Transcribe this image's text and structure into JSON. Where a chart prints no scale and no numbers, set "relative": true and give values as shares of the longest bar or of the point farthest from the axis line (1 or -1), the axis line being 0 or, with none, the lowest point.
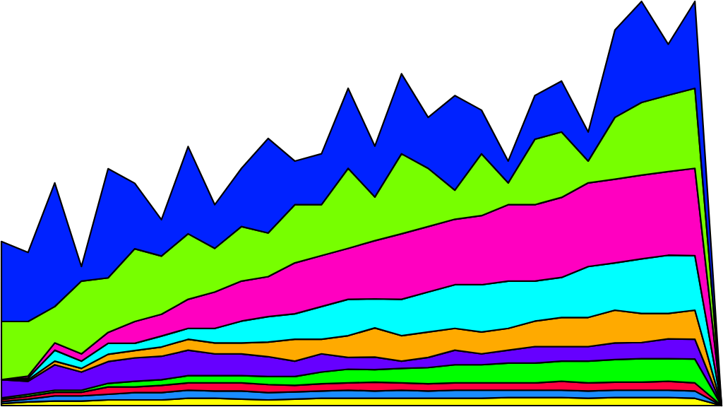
{
  "chart_data": {
    "type": "area",
    "stacked": true,
    "relative": true,
    "legend": false,
    "categories": [
      null,
      null,
      null,
      null,
      null,
      null,
      null,
      null,
      null,
      null,
      null,
      null,
      null,
      null,
      null,
      null,
      null,
      null,
      null,
      null,
      null,
      null,
      null,
      null,
      null,
      null,
      null,
      null
    ],
    "series": [
      {
        "color": "#ffff00",
        "values": [
          0.005,
          0.009,
          0.011,
          0.011,
          0.014,
          0.014,
          0.014,
          0.018,
          0.018,
          0.016,
          0.014,
          0.016,
          0.018,
          0.018,
          0.018,
          0.018,
          0.018,
          0.018,
          0.018,
          0.02,
          0.02,
          0.02,
          0.018,
          0.02,
          0.02,
          0.02,
          0.018,
          0
        ]
      },
      {
        "color": "#1a8cff",
        "values": [
          0.005,
          0.007,
          0.013,
          0.013,
          0.014,
          0.018,
          0.018,
          0.02,
          0.018,
          0.02,
          0.018,
          0.018,
          0.018,
          0.02,
          0.018,
          0.02,
          0.018,
          0.02,
          0.02,
          0.018,
          0.018,
          0.018,
          0.018,
          0.018,
          0.018,
          0.018,
          0.018,
          0
        ]
      },
      {
        "color": "#ff0040",
        "values": [
          0.005,
          0.007,
          0.009,
          0.009,
          0.018,
          0.014,
          0.018,
          0.018,
          0.02,
          0.02,
          0.02,
          0.016,
          0.018,
          0.018,
          0.022,
          0.018,
          0.018,
          0.018,
          0.018,
          0.018,
          0.018,
          0.022,
          0.02,
          0.02,
          0.02,
          0.022,
          0.02,
          0
        ]
      },
      {
        "color": "#00ff00",
        "values": [
          0.004,
          0.005,
          0.005,
          0.005,
          0.009,
          0.014,
          0.014,
          0.018,
          0.018,
          0.018,
          0.02,
          0.022,
          0.029,
          0.034,
          0.031,
          0.036,
          0.04,
          0.045,
          0.045,
          0.049,
          0.049,
          0.05,
          0.054,
          0.056,
          0.058,
          0.056,
          0.059,
          0
        ]
      },
      {
        "color": "#6600ff",
        "values": [
          0.045,
          0.032,
          0.063,
          0.045,
          0.054,
          0.058,
          0.058,
          0.063,
          0.054,
          0.054,
          0.049,
          0.038,
          0.045,
          0.029,
          0.031,
          0.018,
          0.025,
          0.036,
          0.027,
          0.032,
          0.041,
          0.036,
          0.036,
          0.041,
          0.04,
          0.049,
          0.049,
          0
        ]
      },
      {
        "color": "#ffaa00",
        "values": [
          0,
          0.004,
          0.009,
          0.009,
          0.018,
          0.018,
          0.023,
          0.027,
          0.027,
          0.027,
          0.036,
          0.054,
          0.036,
          0.054,
          0.072,
          0.063,
          0.063,
          0.054,
          0.054,
          0.054,
          0.063,
          0.072,
          0.072,
          0.081,
          0.072,
          0.063,
          0.072,
          0
        ]
      },
      {
        "color": "#00ffff",
        "values": [
          0,
          0.004,
          0.027,
          0.018,
          0.027,
          0.018,
          0.027,
          0.027,
          0.036,
          0.054,
          0.063,
          0.063,
          0.081,
          0.09,
          0.072,
          0.09,
          0.099,
          0.108,
          0.117,
          0.117,
          0.099,
          0.099,
          0.126,
          0.117,
          0.135,
          0.144,
          0.135,
          0
        ]
      },
      {
        "color": "#ff00c0",
        "values": [
          0,
          0.005,
          0.018,
          0.018,
          0.027,
          0.054,
          0.054,
          0.072,
          0.09,
          0.099,
          0.099,
          0.126,
          0.126,
          0.126,
          0.144,
          0.162,
          0.162,
          0.162,
          0.171,
          0.189,
          0.189,
          0.198,
          0.207,
          0.207,
          0.207,
          0.207,
          0.216,
          0
        ]
      },
      {
        "color": "#77ff00",
        "values": [
          0.144,
          0.135,
          0.09,
          0.18,
          0.135,
          0.18,
          0.144,
          0.162,
          0.108,
          0.135,
          0.108,
          0.144,
          0.126,
          0.198,
          0.108,
          0.198,
          0.144,
          0.072,
          0.153,
          0.054,
          0.162,
          0.162,
          0.054,
          0.153,
          0.18,
          0.189,
          0.198,
          0
        ]
      },
      {
        "color": "#0022ff",
        "values": [
          0.198,
          0.171,
          0.306,
          0.036,
          0.27,
          0.162,
          0.09,
          0.216,
          0.108,
          0.144,
          0.234,
          0.108,
          0.126,
          0.198,
          0.126,
          0.198,
          0.126,
          0.234,
          0.108,
          0.054,
          0.108,
          0.126,
          0.072,
          0.216,
          0.25,
          0.126,
          0.215,
          0
        ]
      }
    ]
  }
}
